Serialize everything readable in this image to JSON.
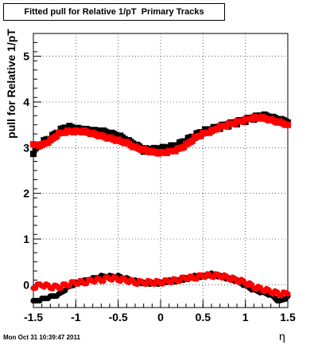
{
  "chart_data": {
    "type": "scatter",
    "title": "Fitted pull for Relative 1/pT  Primary Tracks",
    "xlabel": "η",
    "ylabel": "pull for Relative 1/pT",
    "xlim": [
      -1.5,
      1.5
    ],
    "ylim": [
      -0.5,
      5.5
    ],
    "x_ticks": [
      -1.5,
      -1,
      -0.5,
      0,
      0.5,
      1,
      1.5
    ],
    "x_tick_labels": [
      "-1.5",
      "-1",
      "-0.5",
      "0",
      "0.5",
      "1",
      "1.5"
    ],
    "y_ticks": [
      0,
      1,
      2,
      3,
      4,
      5
    ],
    "y_tick_labels": [
      "0",
      "1",
      "2",
      "3",
      "4",
      "5"
    ],
    "grid": true,
    "legend": "none",
    "series": [
      {
        "marker": "square",
        "color": "#000000",
        "group": "upper",
        "x": [
          -1.5,
          -1.4,
          -1.3,
          -1.2,
          -1.1,
          -1.0,
          -0.9,
          -0.8,
          -0.7,
          -0.6,
          -0.5,
          -0.4,
          -0.3,
          -0.2,
          -0.1,
          0.0,
          0.1,
          0.2,
          0.3,
          0.4,
          0.5,
          0.6,
          0.7,
          0.8,
          0.9,
          1.0,
          1.1,
          1.2,
          1.3,
          1.4,
          1.5
        ],
        "y": [
          2.9,
          3.1,
          3.2,
          3.35,
          3.45,
          3.4,
          3.38,
          3.35,
          3.35,
          3.3,
          3.25,
          3.15,
          3.05,
          2.95,
          2.95,
          2.97,
          3.0,
          3.05,
          3.15,
          3.25,
          3.35,
          3.4,
          3.45,
          3.5,
          3.55,
          3.6,
          3.65,
          3.7,
          3.65,
          3.6,
          3.55
        ]
      },
      {
        "marker": "square",
        "color": "#ff0000",
        "group": "upper",
        "x": [
          -1.5,
          -1.4,
          -1.3,
          -1.2,
          -1.1,
          -1.0,
          -0.9,
          -0.8,
          -0.7,
          -0.6,
          -0.5,
          -0.4,
          -0.3,
          -0.2,
          -0.1,
          0.0,
          0.1,
          0.2,
          0.3,
          0.4,
          0.5,
          0.6,
          0.7,
          0.8,
          0.9,
          1.0,
          1.1,
          1.2,
          1.3,
          1.4,
          1.5
        ],
        "y": [
          3.05,
          3.05,
          3.15,
          3.3,
          3.35,
          3.35,
          3.35,
          3.3,
          3.25,
          3.2,
          3.15,
          3.1,
          3.0,
          2.95,
          2.9,
          2.88,
          2.9,
          2.95,
          3.05,
          3.2,
          3.3,
          3.35,
          3.45,
          3.5,
          3.55,
          3.6,
          3.65,
          3.65,
          3.6,
          3.55,
          3.5
        ]
      },
      {
        "marker": "circle",
        "color": "#000000",
        "group": "lower",
        "x": [
          -1.5,
          -1.4,
          -1.3,
          -1.2,
          -1.1,
          -1.0,
          -0.9,
          -0.8,
          -0.7,
          -0.6,
          -0.5,
          -0.4,
          -0.3,
          -0.2,
          -0.1,
          0.0,
          0.1,
          0.2,
          0.3,
          0.4,
          0.5,
          0.6,
          0.7,
          0.8,
          0.9,
          1.0,
          1.1,
          1.2,
          1.3,
          1.4,
          1.5
        ],
        "y": [
          -0.35,
          -0.3,
          -0.25,
          -0.2,
          -0.05,
          0.05,
          0.1,
          0.15,
          0.2,
          0.2,
          0.2,
          0.15,
          0.1,
          0.05,
          0.05,
          0.05,
          0.1,
          0.1,
          0.15,
          0.2,
          0.2,
          0.25,
          0.2,
          0.15,
          0.1,
          0.0,
          -0.1,
          -0.15,
          -0.2,
          -0.35,
          -0.25
        ]
      },
      {
        "marker": "circle",
        "color": "#ff0000",
        "group": "lower",
        "x": [
          -1.5,
          -1.4,
          -1.3,
          -1.2,
          -1.1,
          -1.0,
          -0.9,
          -0.8,
          -0.7,
          -0.6,
          -0.5,
          -0.4,
          -0.3,
          -0.2,
          -0.1,
          0.0,
          0.1,
          0.2,
          0.3,
          0.4,
          0.5,
          0.6,
          0.7,
          0.8,
          0.9,
          1.0,
          1.1,
          1.2,
          1.3,
          1.4,
          1.5
        ],
        "y": [
          -0.05,
          0.0,
          -0.05,
          -0.05,
          0.0,
          0.05,
          0.05,
          0.1,
          0.1,
          0.15,
          0.12,
          0.1,
          0.05,
          0.05,
          0.05,
          0.05,
          0.08,
          0.1,
          0.15,
          0.15,
          0.2,
          0.2,
          0.2,
          0.15,
          0.1,
          0.05,
          -0.05,
          -0.1,
          -0.15,
          -0.2,
          -0.2
        ]
      }
    ]
  },
  "footer": {
    "date_stamp": "Mon Oct 31 10:39:47 2011"
  }
}
